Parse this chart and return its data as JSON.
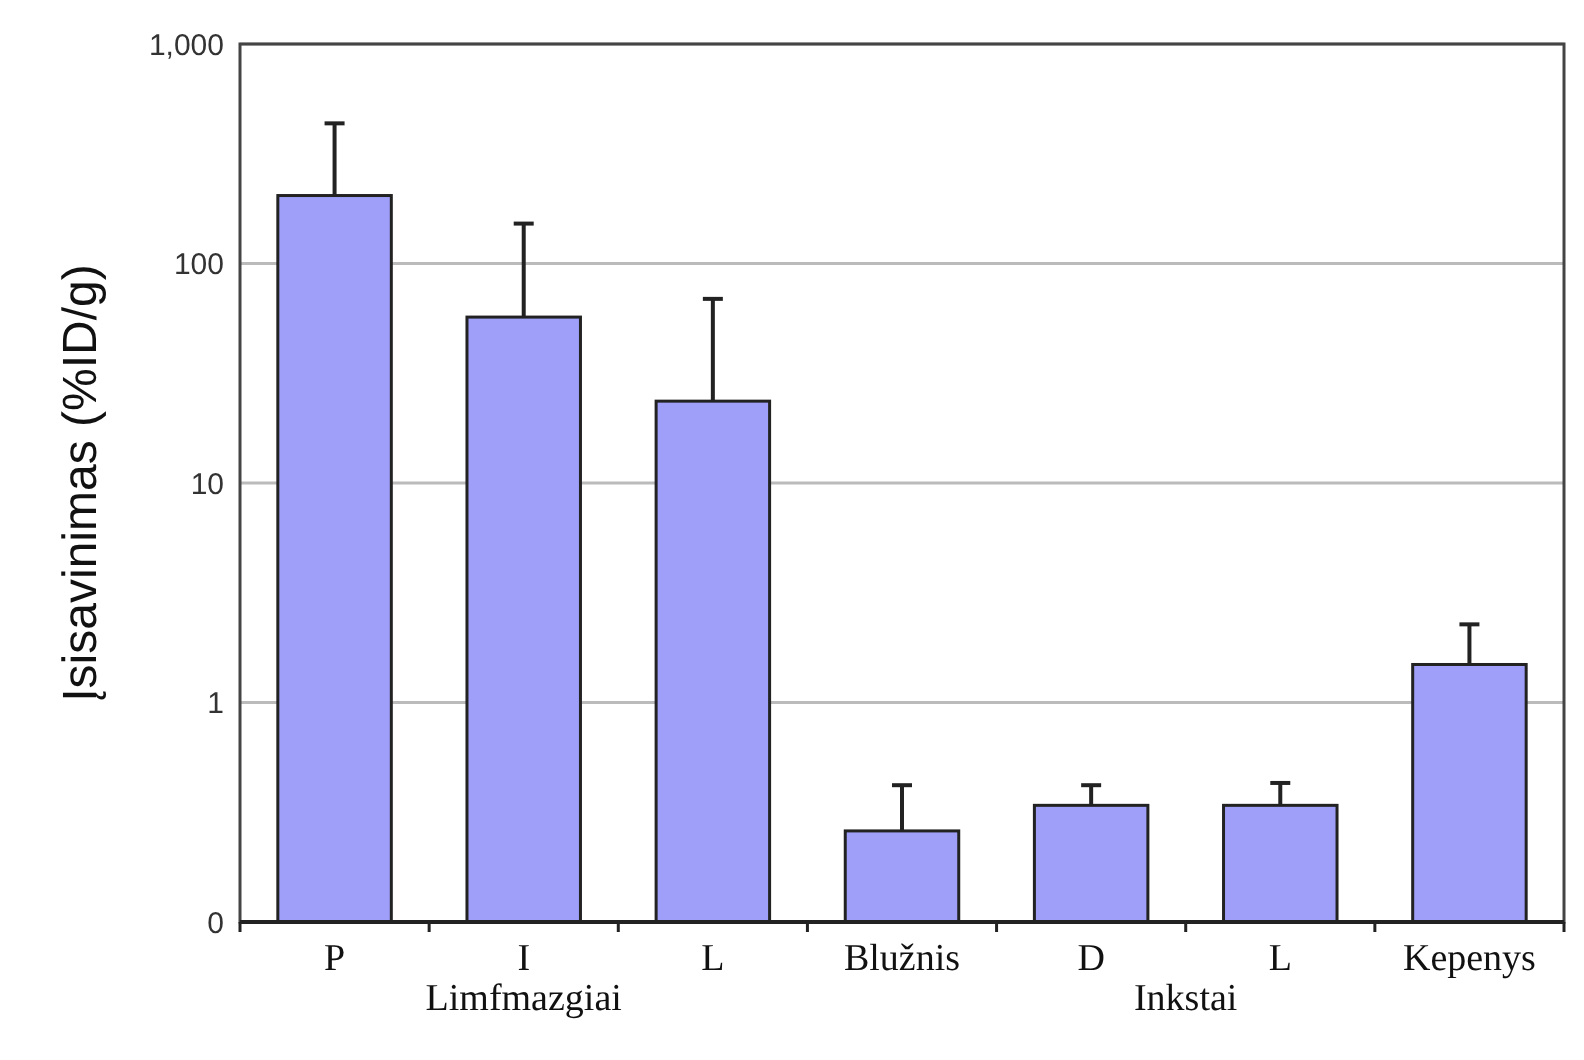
{
  "chart_data": {
    "type": "bar",
    "ylabel": "Įsisavinimas (%ID/g)",
    "categories": [
      "P",
      "I",
      "L",
      "Blužnis",
      "D",
      "L",
      "Kepenys"
    ],
    "values": [
      204,
      57,
      23.6,
      0.26,
      0.34,
      0.34,
      1.49
    ],
    "errors": [
      [
        204,
        435
      ],
      [
        57,
        152
      ],
      [
        23.6,
        69
      ],
      [
        0.26,
        0.42
      ],
      [
        0.34,
        0.42
      ],
      [
        0.34,
        0.43
      ],
      [
        1.49,
        2.27
      ]
    ],
    "color": "#9f9ffa",
    "log": true,
    "ylim": [
      0.1,
      1000
    ],
    "yticks": [
      {
        "value": 0.1,
        "label": "0"
      },
      1,
      10,
      100,
      {
        "value": 1000,
        "label": "1,000"
      }
    ],
    "grid": "y",
    "annotations": [
      "Limfmazgiai",
      "Inkstai"
    ]
  }
}
